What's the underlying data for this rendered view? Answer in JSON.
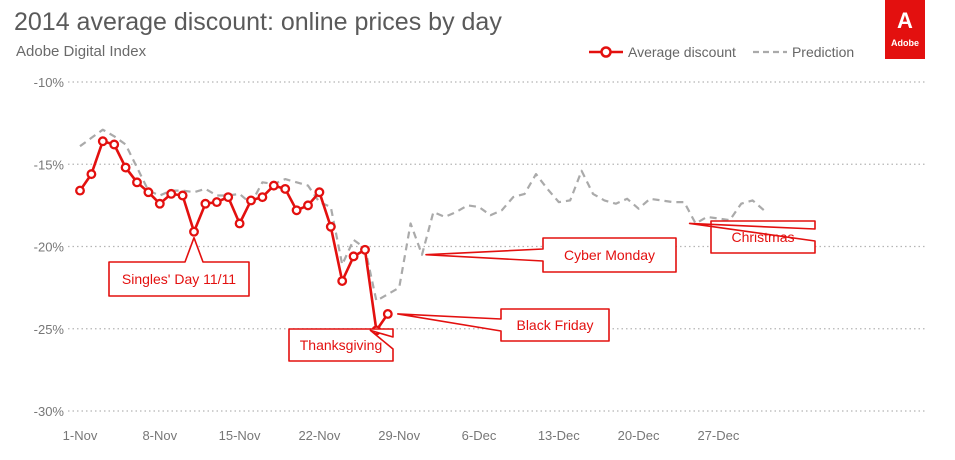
{
  "header": {
    "title": "2014 average discount: online prices by day",
    "subtitle": "Adobe Digital Index"
  },
  "logo": {
    "wordmark": "Adobe",
    "mark": "A",
    "color": "#e3100f"
  },
  "chart_data": {
    "type": "line",
    "x_start": "1-Nov",
    "x_tick_labels": [
      "1-Nov",
      "8-Nov",
      "15-Nov",
      "22-Nov",
      "29-Nov",
      "6-Dec",
      "13-Dec",
      "20-Dec",
      "27-Dec"
    ],
    "y_tick_labels": [
      "-10%",
      "-15%",
      "-20%",
      "-25%",
      "-30%"
    ],
    "ylim": [
      -30,
      -10
    ],
    "grid": "horizontal-dotted",
    "legend_position": "top-right",
    "series": [
      {
        "name": "Average discount",
        "color": "#e3100f",
        "marker": "circle",
        "x": [
          "1-Nov",
          "2-Nov",
          "3-Nov",
          "4-Nov",
          "5-Nov",
          "6-Nov",
          "7-Nov",
          "8-Nov",
          "9-Nov",
          "10-Nov",
          "11-Nov",
          "12-Nov",
          "13-Nov",
          "14-Nov",
          "15-Nov",
          "16-Nov",
          "17-Nov",
          "18-Nov",
          "19-Nov",
          "20-Nov",
          "21-Nov",
          "22-Nov",
          "23-Nov",
          "24-Nov",
          "25-Nov",
          "26-Nov",
          "27-Nov",
          "28-Nov"
        ],
        "values": [
          -16.6,
          -15.6,
          -13.6,
          -13.8,
          -15.2,
          -16.1,
          -16.7,
          -17.4,
          -16.8,
          -16.9,
          -19.1,
          -17.4,
          -17.3,
          -17.0,
          -18.6,
          -17.2,
          -17.0,
          -16.3,
          -16.5,
          -17.8,
          -17.5,
          -16.7,
          -18.8,
          -22.1,
          -20.6,
          -20.2,
          -25.1,
          -24.1
        ]
      },
      {
        "name": "Prediction",
        "color": "#aaaaaa",
        "dashed": true,
        "x": [
          "1-Nov",
          "2-Nov",
          "3-Nov",
          "4-Nov",
          "5-Nov",
          "6-Nov",
          "7-Nov",
          "8-Nov",
          "9-Nov",
          "10-Nov",
          "11-Nov",
          "12-Nov",
          "13-Nov",
          "14-Nov",
          "15-Nov",
          "16-Nov",
          "17-Nov",
          "18-Nov",
          "19-Nov",
          "20-Nov",
          "21-Nov",
          "22-Nov",
          "23-Nov",
          "24-Nov",
          "25-Nov",
          "26-Nov",
          "27-Nov",
          "28-Nov",
          "29-Nov",
          "30-Nov",
          "1-Dec",
          "2-Dec",
          "3-Dec",
          "4-Dec",
          "5-Dec",
          "6-Dec",
          "7-Dec",
          "8-Dec",
          "9-Dec",
          "10-Dec",
          "11-Dec",
          "12-Dec",
          "13-Dec",
          "14-Dec",
          "15-Dec",
          "16-Dec",
          "17-Dec",
          "18-Dec",
          "19-Dec",
          "20-Dec",
          "21-Dec",
          "22-Dec",
          "23-Dec",
          "24-Dec",
          "25-Dec",
          "26-Dec",
          "27-Dec",
          "28-Dec",
          "29-Dec",
          "30-Dec",
          "31-Dec"
        ],
        "values": [
          -13.9,
          -13.4,
          -12.9,
          -13.3,
          -13.8,
          -15.2,
          -16.6,
          -16.9,
          -16.6,
          -16.6,
          -16.7,
          -16.5,
          -16.9,
          -16.9,
          -16.8,
          -17.4,
          -16.1,
          -16.2,
          -15.9,
          -16.1,
          -16.3,
          -17.3,
          -17.6,
          -21.1,
          -19.6,
          -20.1,
          -23.3,
          -22.9,
          -22.5,
          -18.6,
          -20.5,
          -17.9,
          -18.2,
          -17.9,
          -17.5,
          -17.6,
          -18.1,
          -17.8,
          -17.0,
          -16.8,
          -15.6,
          -16.5,
          -17.3,
          -17.2,
          -15.4,
          -16.8,
          -17.2,
          -17.4,
          -17.1,
          -17.7,
          -17.1,
          -17.2,
          -17.3,
          -17.3,
          -18.6,
          -18.2,
          -18.3,
          -18.4,
          -17.4,
          -17.2,
          -17.8
        ]
      }
    ],
    "annotations": [
      {
        "text": "Singles' Day 11/11",
        "x": "11-Nov",
        "series": 0
      },
      {
        "text": "Thanksgiving",
        "x": "27-Nov",
        "series": 0
      },
      {
        "text": "Black Friday",
        "x": "28-Nov",
        "series": 0
      },
      {
        "text": "Cyber Monday",
        "x": "1-Dec",
        "series": 1
      },
      {
        "text": "Christmas",
        "x": "25-Dec",
        "series": 1
      }
    ]
  }
}
